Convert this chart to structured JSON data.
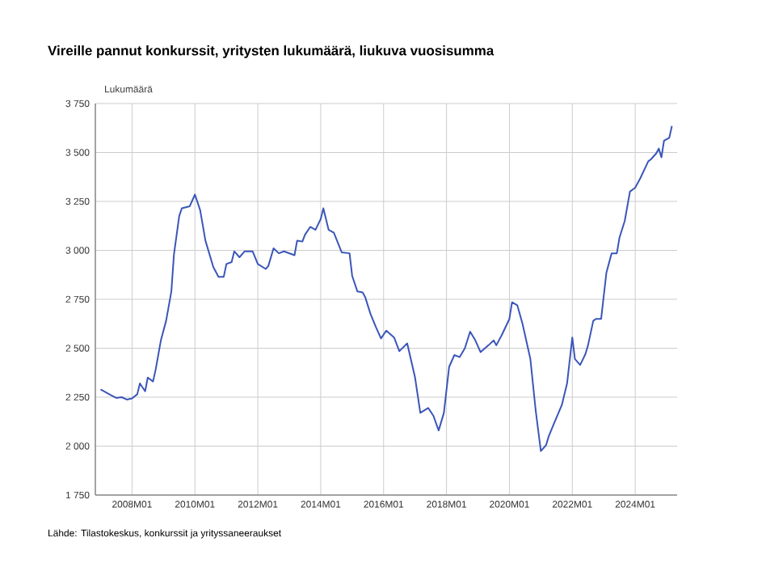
{
  "chart_data": {
    "type": "line",
    "title": "Vireille pannut konkurssit, yritysten lukumäärä, liukuva vuosisumma",
    "ylabel": "Lukumäärä",
    "annotations": [
      "Lähde: Tilastokeskus, konkurssit ja yrityssaneeraukset"
    ],
    "x": [
      "2007-01",
      "2007-05",
      "2007-07",
      "2007-09",
      "2007-11",
      "2008-01",
      "2008-03",
      "2008-04",
      "2008-06",
      "2008-07",
      "2008-09",
      "2008-10",
      "2008-12",
      "2009-02",
      "2009-04",
      "2009-05",
      "2009-07",
      "2009-08",
      "2009-11",
      "2010-01",
      "2010-03",
      "2010-05",
      "2010-08",
      "2010-10",
      "2010-12",
      "2011-01",
      "2011-03",
      "2011-04",
      "2011-06",
      "2011-08",
      "2011-11",
      "2012-01",
      "2012-04",
      "2012-05",
      "2012-07",
      "2012-09",
      "2012-11",
      "2013-03",
      "2013-04",
      "2013-06",
      "2013-07",
      "2013-09",
      "2013-11",
      "2014-01",
      "2014-02",
      "2014-04",
      "2014-06",
      "2014-09",
      "2014-12",
      "2015-01",
      "2015-03",
      "2015-05",
      "2015-06",
      "2015-08",
      "2015-10",
      "2015-12",
      "2016-02",
      "2016-05",
      "2016-07",
      "2016-10",
      "2017-01",
      "2017-03",
      "2017-06",
      "2017-08",
      "2017-10",
      "2017-12",
      "2018-02",
      "2018-04",
      "2018-06",
      "2018-08",
      "2018-10",
      "2018-12",
      "2019-02",
      "2019-05",
      "2019-07",
      "2019-08",
      "2019-10",
      "2020-01",
      "2020-02",
      "2020-04",
      "2020-06",
      "2020-09",
      "2020-11",
      "2021-01",
      "2021-03",
      "2021-04",
      "2021-06",
      "2021-09",
      "2021-11",
      "2022-01",
      "2022-02",
      "2022-04",
      "2022-06",
      "2022-07",
      "2022-09",
      "2022-10",
      "2022-12",
      "2023-02",
      "2023-04",
      "2023-06",
      "2023-07",
      "2023-09",
      "2023-11",
      "2024-01",
      "2024-03",
      "2024-06",
      "2024-07",
      "2024-09",
      "2024-10",
      "2024-11",
      "2024-12",
      "2025-02",
      "2025-03"
    ],
    "series": [
      {
        "color": "#3a56b8",
        "values": [
          2290,
          2260,
          2246,
          2250,
          2238,
          2244,
          2265,
          2320,
          2280,
          2350,
          2330,
          2390,
          2540,
          2640,
          2790,
          2980,
          3175,
          3215,
          3225,
          3285,
          3205,
          3050,
          2915,
          2865,
          2865,
          2930,
          2940,
          2995,
          2965,
          2995,
          2995,
          2930,
          2905,
          2920,
          3010,
          2985,
          2995,
          2975,
          3050,
          3045,
          3080,
          3120,
          3105,
          3160,
          3215,
          3105,
          3090,
          2990,
          2985,
          2870,
          2790,
          2785,
          2760,
          2675,
          2610,
          2550,
          2590,
          2555,
          2485,
          2525,
          2350,
          2170,
          2195,
          2155,
          2080,
          2170,
          2405,
          2465,
          2455,
          2500,
          2585,
          2540,
          2480,
          2515,
          2540,
          2515,
          2565,
          2650,
          2735,
          2720,
          2625,
          2445,
          2185,
          1975,
          2005,
          2050,
          2115,
          2210,
          2320,
          2555,
          2445,
          2415,
          2470,
          2515,
          2640,
          2650,
          2650,
          2885,
          2985,
          2985,
          3065,
          3150,
          3300,
          3320,
          3370,
          3455,
          3465,
          3495,
          3520,
          3475,
          3560,
          3575,
          3635
        ]
      }
    ],
    "xlim": [
      "2006-11",
      "2025-05"
    ],
    "xticks": [
      {
        "value": "2008-01",
        "label": "2008M01"
      },
      {
        "value": "2010-01",
        "label": "2010M01"
      },
      {
        "value": "2012-01",
        "label": "2012M01"
      },
      {
        "value": "2014-01",
        "label": "2014M01"
      },
      {
        "value": "2016-01",
        "label": "2016M01"
      },
      {
        "value": "2018-01",
        "label": "2018M01"
      },
      {
        "value": "2020-01",
        "label": "2020M01"
      },
      {
        "value": "2022-01",
        "label": "2022M01"
      },
      {
        "value": "2024-01",
        "label": "2024M01"
      }
    ],
    "ylim": [
      1750,
      3750
    ],
    "yticks": [
      {
        "value": 1750,
        "label": "1 750"
      },
      {
        "value": 2000,
        "label": "2 000"
      },
      {
        "value": 2250,
        "label": "2 250"
      },
      {
        "value": 2500,
        "label": "2 500"
      },
      {
        "value": 2750,
        "label": "2 750"
      },
      {
        "value": 3000,
        "label": "3 000"
      },
      {
        "value": 3250,
        "label": "3 250"
      },
      {
        "value": 3500,
        "label": "3 500"
      },
      {
        "value": 3750,
        "label": "3 750"
      }
    ],
    "grid": true,
    "marker": "none",
    "line_style": "solid"
  }
}
